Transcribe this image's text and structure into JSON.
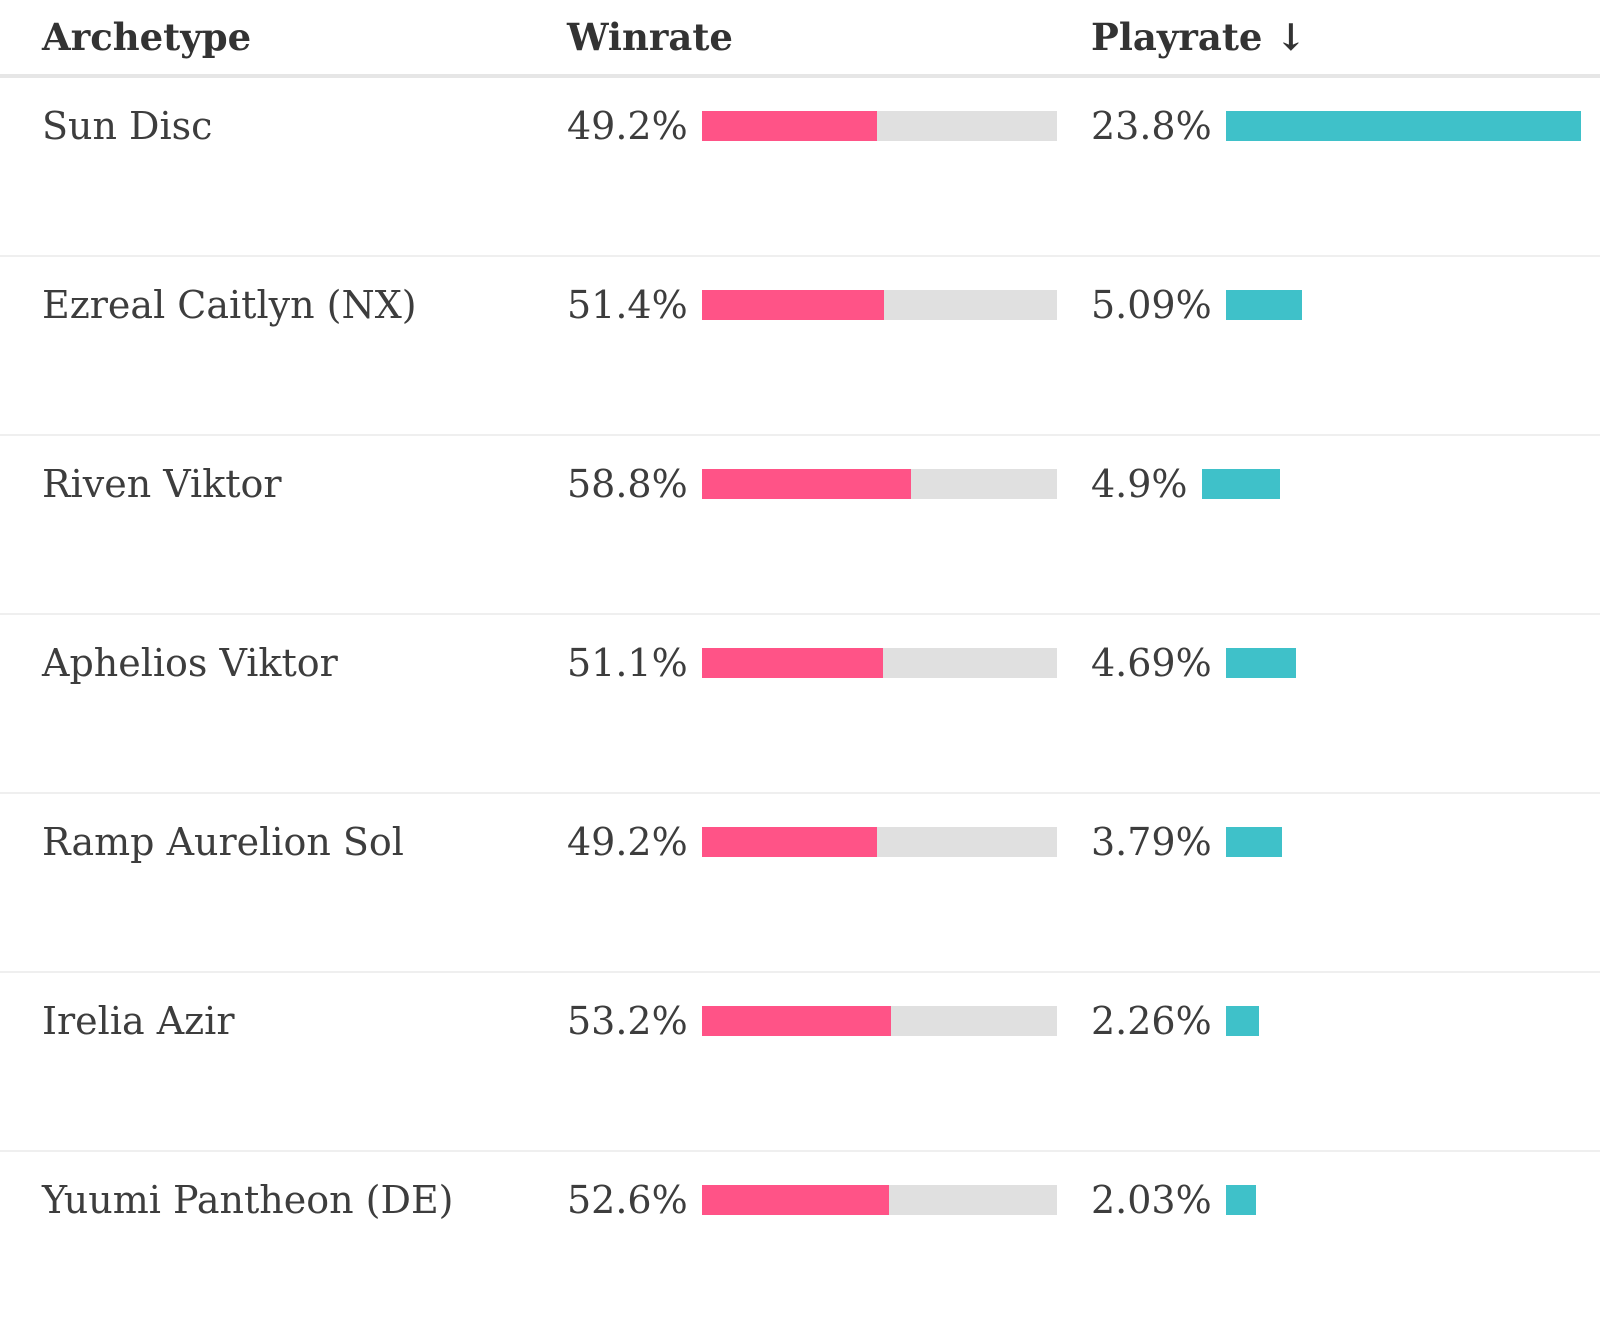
{
  "header": {
    "archetype_label": "Archetype",
    "winrate_label": "Winrate",
    "playrate_label": "Playrate ↓",
    "sort_icon": "arrow-down-icon"
  },
  "colors": {
    "winrate_bar": "#ff5387",
    "winrate_track": "#e0e0e0",
    "playrate_bar": "#3fc1c9"
  },
  "rows": [
    {
      "archetype": "Sun Disc",
      "winrate_text": "49.2%",
      "winrate": 0.492,
      "playrate_text": "23.8%",
      "playrate": 0.238
    },
    {
      "archetype": "Ezreal Caitlyn (NX)",
      "winrate_text": "51.4%",
      "winrate": 0.514,
      "playrate_text": "5.09%",
      "playrate": 0.0509
    },
    {
      "archetype": "Riven Viktor",
      "winrate_text": "58.8%",
      "winrate": 0.588,
      "playrate_text": "4.9%",
      "playrate": 0.049
    },
    {
      "archetype": "Aphelios Viktor",
      "winrate_text": "51.1%",
      "winrate": 0.511,
      "playrate_text": "4.69%",
      "playrate": 0.0469
    },
    {
      "archetype": "Ramp Aurelion Sol",
      "winrate_text": "49.2%",
      "winrate": 0.492,
      "playrate_text": "3.79%",
      "playrate": 0.0379
    },
    {
      "archetype": "Irelia Azir",
      "winrate_text": "53.2%",
      "winrate": 0.532,
      "playrate_text": "2.26%",
      "playrate": 0.0226
    },
    {
      "archetype": "Yuumi Pantheon (DE)",
      "winrate_text": "52.6%",
      "winrate": 0.526,
      "playrate_text": "2.03%",
      "playrate": 0.0203
    }
  ]
}
